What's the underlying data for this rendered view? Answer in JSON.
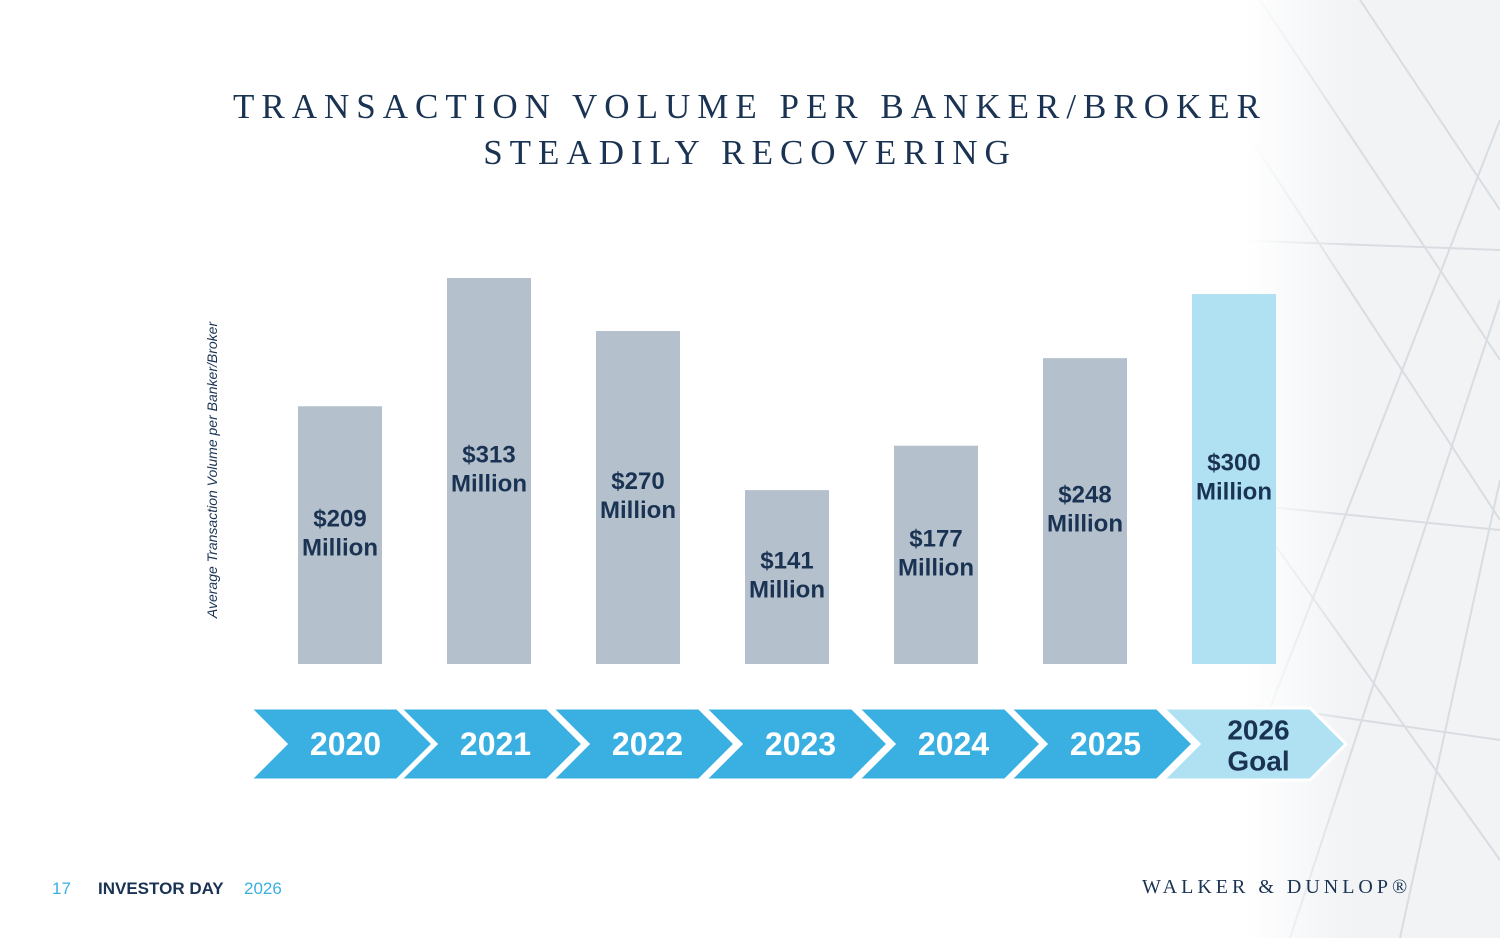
{
  "title": {
    "line1": "TRANSACTION VOLUME PER BANKER/BROKER",
    "line2": "STEADILY RECOVERING"
  },
  "chart_data": {
    "type": "bar",
    "title": "TRANSACTION VOLUME PER BANKER/BROKER STEADILY RECOVERING",
    "ylabel": "Average Transaction Volume per Banker/Broker",
    "xlabel": "",
    "categories": [
      "2020",
      "2021",
      "2022",
      "2023",
      "2024",
      "2025",
      "2026 Goal"
    ],
    "values": [
      209,
      313,
      270,
      141,
      177,
      248,
      300
    ],
    "value_labels": [
      [
        "$209",
        "Million"
      ],
      [
        "$313",
        "Million"
      ],
      [
        "$270",
        "Million"
      ],
      [
        "$141",
        "Million"
      ],
      [
        "$177",
        "Million"
      ],
      [
        "$248",
        "Million"
      ],
      [
        "$300",
        "Million"
      ]
    ],
    "category_labels": [
      [
        "2020"
      ],
      [
        "2021"
      ],
      [
        "2022"
      ],
      [
        "2023"
      ],
      [
        "2024"
      ],
      [
        "2025"
      ],
      [
        "2026",
        "Goal"
      ]
    ],
    "highlight": [
      false,
      false,
      false,
      false,
      false,
      false,
      true
    ],
    "grid": false,
    "legend": "none",
    "colors": {
      "bar": "#b4c0cc",
      "bar_goal": "#b0e1f3",
      "arrow": "#3ab0e2",
      "arrow_goal": "#b0e1f3",
      "label_text": "#1a3353",
      "arrow_text": "#ffffff",
      "arrow_text_goal": "#1a3353"
    }
  },
  "footer": {
    "page_number": "17",
    "event": "INVESTOR DAY",
    "year": "2026",
    "logo": "WALKER & DUNLOP®"
  }
}
